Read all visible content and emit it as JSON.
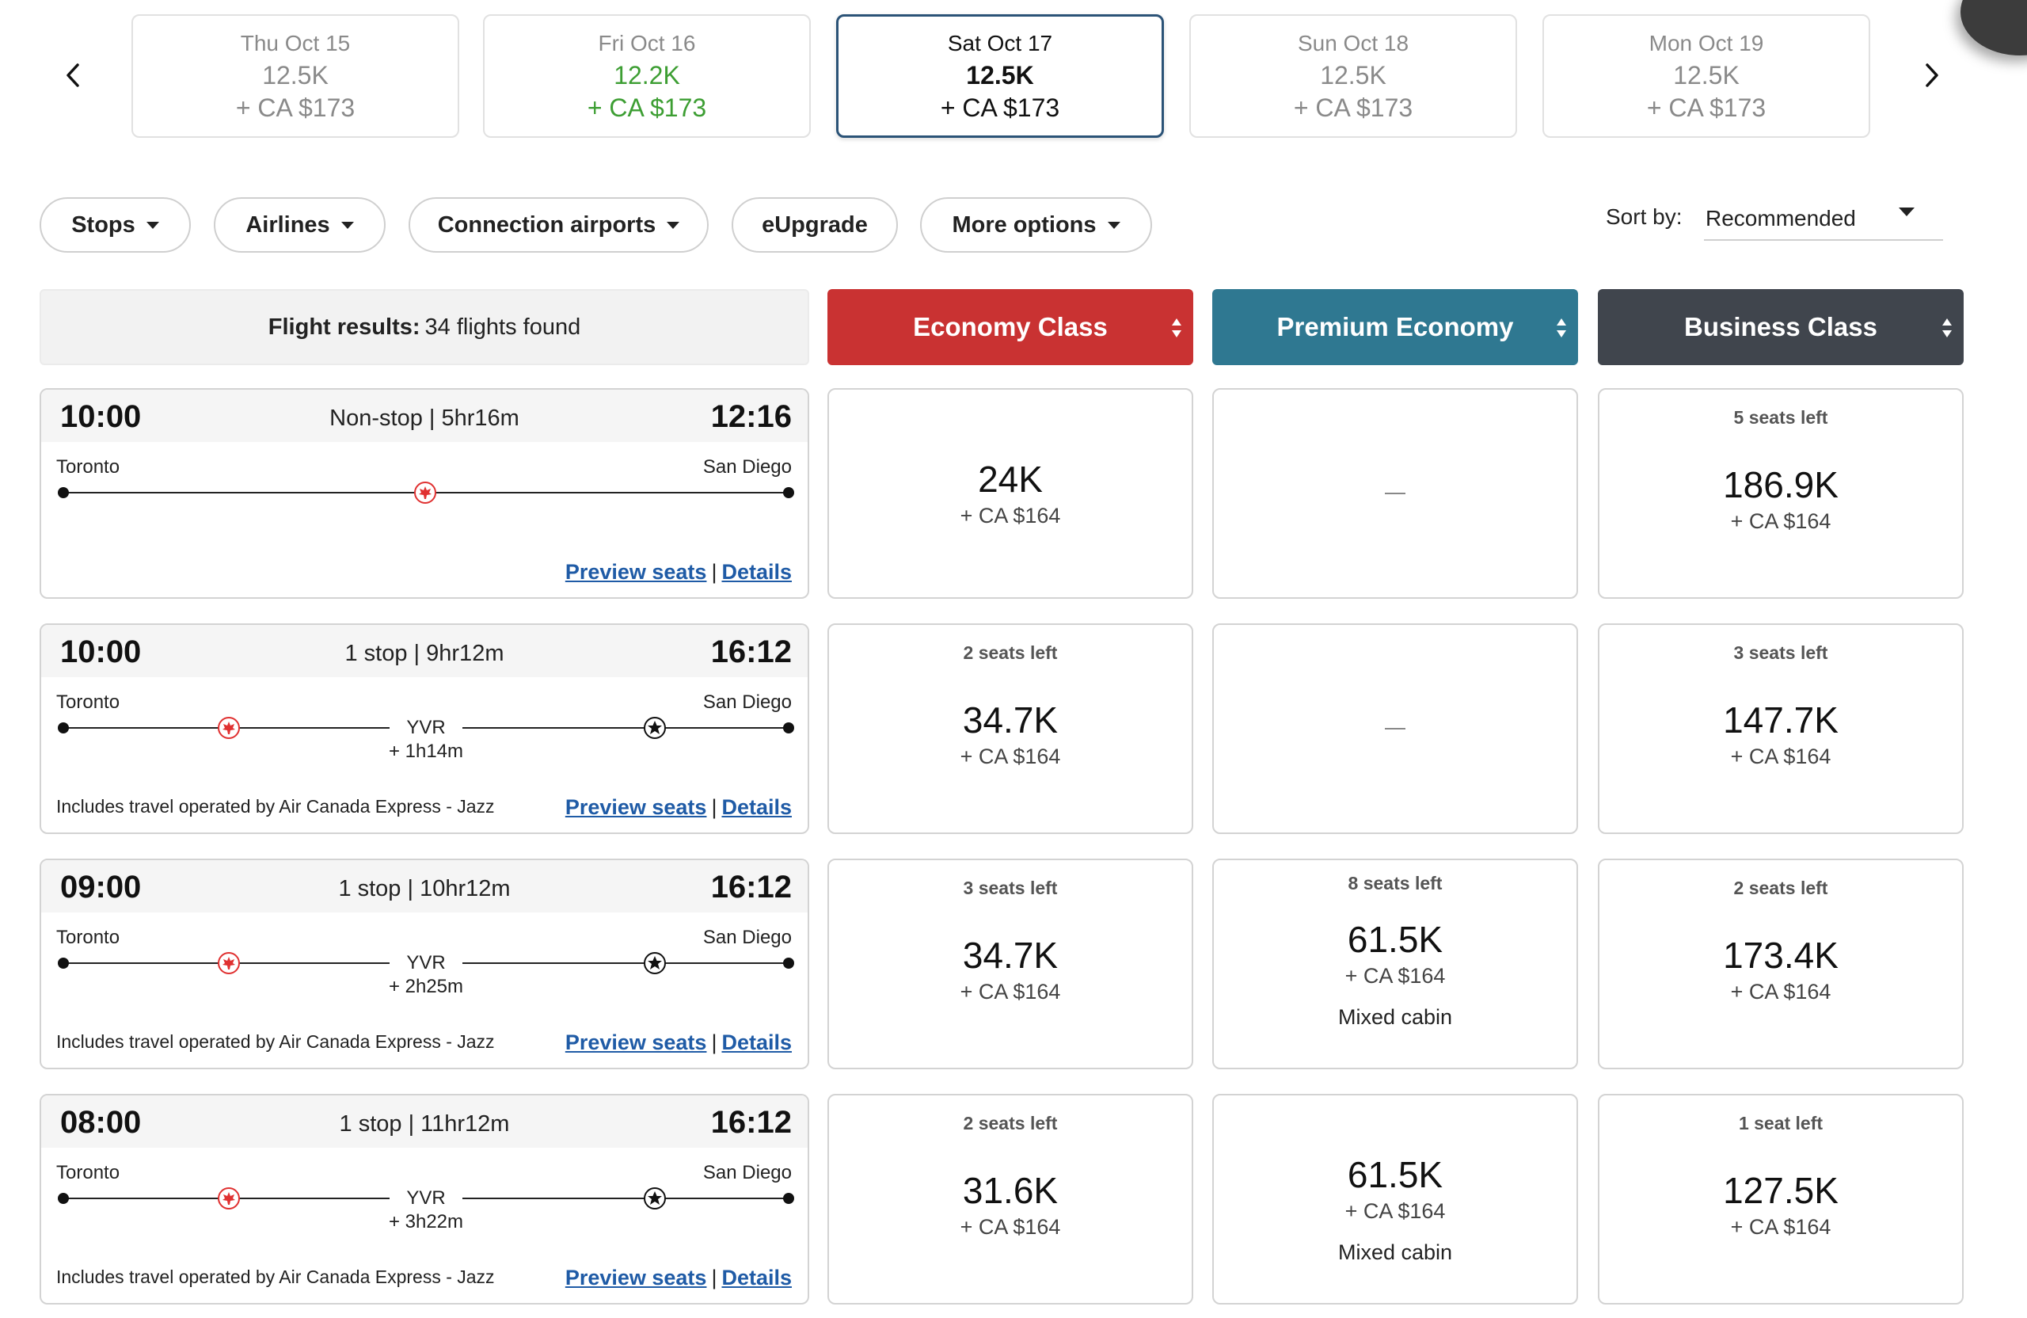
{
  "date_strip": {
    "prev_icon": "chevron-left-icon",
    "next_icon": "chevron-right-icon",
    "dates": [
      {
        "label": "Thu Oct 15",
        "points": "12.5K",
        "tax": "+ CA $173",
        "state": "normal"
      },
      {
        "label": "Fri Oct 16",
        "points": "12.2K",
        "tax": "+ CA $173",
        "state": "lower"
      },
      {
        "label": "Sat Oct 17",
        "points": "12.5K",
        "tax": "+ CA $173",
        "state": "selected"
      },
      {
        "label": "Sun Oct 18",
        "points": "12.5K",
        "tax": "+ CA $173",
        "state": "normal"
      },
      {
        "label": "Mon Oct 19",
        "points": "12.5K",
        "tax": "+ CA $173",
        "state": "normal"
      }
    ],
    "lower_price_color": "#3d9e33",
    "selected_border_color": "#2b5377"
  },
  "filters": {
    "buttons": [
      {
        "label": "Stops",
        "dropdown": true
      },
      {
        "label": "Airlines",
        "dropdown": true
      },
      {
        "label": "Connection airports",
        "dropdown": true
      },
      {
        "label": "eUpgrade",
        "dropdown": false
      },
      {
        "label": "More options",
        "dropdown": true
      }
    ],
    "sort_label": "Sort by:",
    "sort_value": "Recommended"
  },
  "results_header": {
    "label": "Flight results:",
    "count_text": "34 flights found"
  },
  "cabins": [
    {
      "label": "Economy Class",
      "color": "#c93232"
    },
    {
      "label": "Premium Economy",
      "color": "#2f7891"
    },
    {
      "label": "Business Class",
      "color": "#40454d"
    }
  ],
  "flights": [
    {
      "depart": "10:00",
      "arrive": "12:16",
      "summary": "Non-stop | 5hr16m",
      "origin": "Toronto",
      "destination": "San Diego",
      "stop_code": "",
      "layover": "",
      "note": "",
      "links": {
        "preview": "Preview seats",
        "details": "Details"
      },
      "prices": [
        {
          "seats": "",
          "points": "24K",
          "tax": "+ CA $164",
          "mixed": "",
          "available": true
        },
        {
          "seats": "",
          "points": "",
          "tax": "",
          "mixed": "",
          "available": false
        },
        {
          "seats": "5 seats left",
          "points": "186.9K",
          "tax": "+ CA $164",
          "mixed": "",
          "available": true
        }
      ]
    },
    {
      "depart": "10:00",
      "arrive": "16:12",
      "summary": "1 stop | 9hr12m",
      "origin": "Toronto",
      "destination": "San Diego",
      "stop_code": "YVR",
      "layover": "+ 1h14m",
      "note": "Includes travel operated by Air Canada Express - Jazz",
      "links": {
        "preview": "Preview seats",
        "details": "Details"
      },
      "prices": [
        {
          "seats": "2 seats left",
          "points": "34.7K",
          "tax": "+ CA $164",
          "mixed": "",
          "available": true
        },
        {
          "seats": "",
          "points": "",
          "tax": "",
          "mixed": "",
          "available": false
        },
        {
          "seats": "3 seats left",
          "points": "147.7K",
          "tax": "+ CA $164",
          "mixed": "",
          "available": true
        }
      ]
    },
    {
      "depart": "09:00",
      "arrive": "16:12",
      "summary": "1 stop | 10hr12m",
      "origin": "Toronto",
      "destination": "San Diego",
      "stop_code": "YVR",
      "layover": "+ 2h25m",
      "note": "Includes travel operated by Air Canada Express - Jazz",
      "links": {
        "preview": "Preview seats",
        "details": "Details"
      },
      "prices": [
        {
          "seats": "3 seats left",
          "points": "34.7K",
          "tax": "+ CA $164",
          "mixed": "",
          "available": true
        },
        {
          "seats": "8 seats left",
          "points": "61.5K",
          "tax": "+ CA $164",
          "mixed": "Mixed cabin",
          "available": true
        },
        {
          "seats": "2 seats left",
          "points": "173.4K",
          "tax": "+ CA $164",
          "mixed": "",
          "available": true
        }
      ]
    },
    {
      "depart": "08:00",
      "arrive": "16:12",
      "summary": "1 stop | 11hr12m",
      "origin": "Toronto",
      "destination": "San Diego",
      "stop_code": "YVR",
      "layover": "+ 3h22m",
      "note": "Includes travel operated by Air Canada Express - Jazz",
      "links": {
        "preview": "Preview seats",
        "details": "Details"
      },
      "prices": [
        {
          "seats": "2 seats left",
          "points": "31.6K",
          "tax": "+ CA $164",
          "mixed": "",
          "available": true
        },
        {
          "seats": "",
          "points": "61.5K",
          "tax": "+ CA $164",
          "mixed": "Mixed cabin",
          "available": true
        },
        {
          "seats": "1 seat left",
          "points": "127.5K",
          "tax": "+ CA $164",
          "mixed": "",
          "available": true
        }
      ]
    }
  ],
  "icons": {
    "maple_leaf": "maple-leaf-icon",
    "star_alliance": "star-alliance-icon",
    "sort_arrows": "sort-arrows-icon"
  },
  "colors": {
    "link": "#1f5ba6",
    "maple_leaf": "#e03131"
  }
}
